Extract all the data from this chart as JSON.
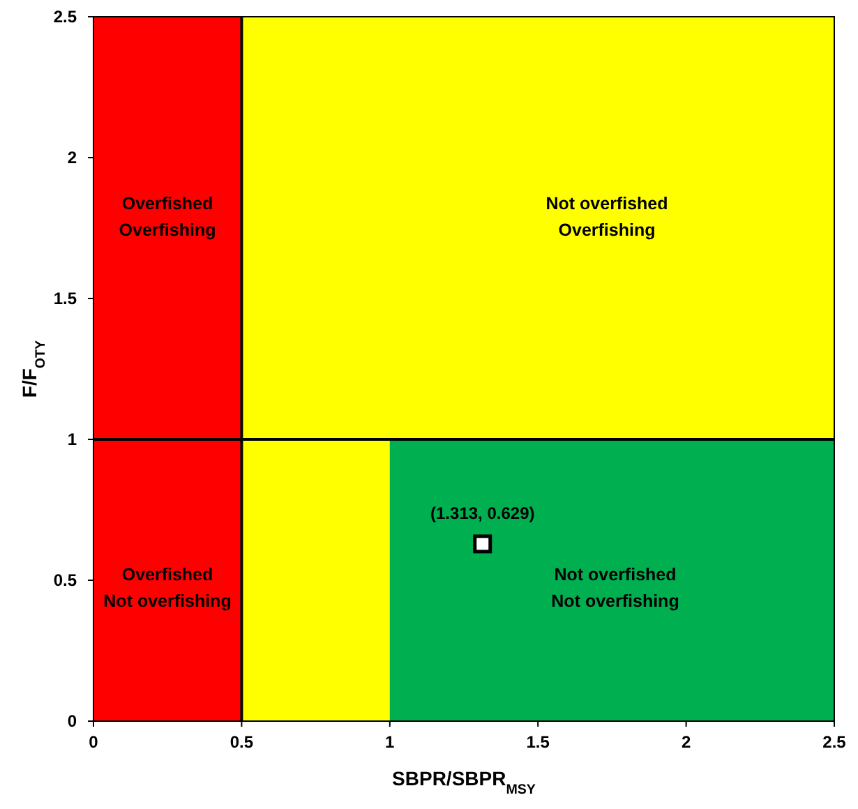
{
  "chart_data": {
    "type": "scatter",
    "xlabel": "SBPR/SBPR$_{MSY}$",
    "ylabel": "F/F$_{OTY}$",
    "series": [
      {
        "color": "#ffffff",
        "x": [
          1.313
        ],
        "values": [
          0.629
        ]
      }
    ],
    "marker": "square",
    "xlim": [
      0,
      2.5
    ],
    "xticks": [
      0,
      0.5,
      1,
      1.5,
      2,
      2.5
    ],
    "ylim": [
      0,
      2.5
    ],
    "yticks": [
      0,
      0.5,
      1,
      1.5,
      2,
      2.5
    ],
    "grid": false,
    "bands": [
      {
        "axis": "x",
        "from": 0,
        "to": 0.5,
        "color": "#ff0000"
      },
      {
        "axis": "x",
        "from": 0.5,
        "to": 2.5,
        "color": "#ffff00"
      }
    ],
    "ref_lines": [
      {
        "axis": "x",
        "value": 0.5,
        "color": "#000000"
      },
      {
        "axis": "y",
        "value": 1,
        "color": "#000000"
      }
    ],
    "annotations": [
      "Overfished\nOverfishing",
      "Not overfished\nOverfishing",
      "Overfished\nNot overfishing",
      "Not overfished\nNot overfishing",
      {
        "text": "(1.313, 0.629)",
        "x": 1.313,
        "y": 0.629
      }
    ]
  }
}
